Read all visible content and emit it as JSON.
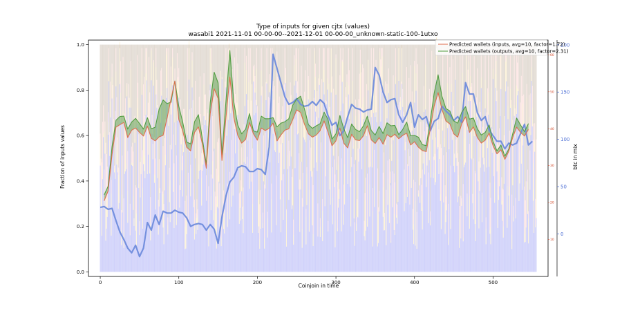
{
  "chart_data": {
    "type": "line",
    "title": "Type of inputs for given cjtx (values)",
    "subtitle": "wasabi1 2021-11-01 00-00-00--2021-12-01 00-00-00_unknown-static-100-1utxo",
    "xlabel": "Coinjoin in time",
    "ylabel": "Fraction of inputs values",
    "y2label": "btc in mix",
    "xlim": [
      -15,
      570
    ],
    "ylim": [
      -0.02,
      1.02
    ],
    "y2lim": [
      -45,
      205
    ],
    "y3lim": [
      0,
      64
    ],
    "xticks": [
      "0",
      "100",
      "200",
      "300",
      "400",
      "500"
    ],
    "yticks": [
      "0.0",
      "0.2",
      "0.4",
      "0.6",
      "0.8",
      "1.0"
    ],
    "y2ticks": [
      "0",
      "50",
      "100",
      "150",
      "200"
    ],
    "y3ticks": [
      "10",
      "20",
      "30",
      "40",
      "50",
      "60"
    ],
    "legend_position": "top-right",
    "grid": false,
    "series": [
      {
        "name": "Predicted wallets (inputs, avg=10, factor=1.72)",
        "color": "#e06a4a",
        "axis": "right-inner",
        "x": [
          5,
          10,
          15,
          20,
          25,
          30,
          35,
          40,
          45,
          50,
          55,
          60,
          65,
          70,
          75,
          80,
          85,
          90,
          95,
          100,
          105,
          110,
          115,
          120,
          125,
          130,
          135,
          140,
          145,
          150,
          155,
          160,
          165,
          170,
          175,
          180,
          185,
          190,
          195,
          200,
          205,
          210,
          215,
          220,
          225,
          230,
          235,
          240,
          245,
          250,
          255,
          260,
          265,
          270,
          275,
          280,
          285,
          290,
          295,
          300,
          305,
          310,
          315,
          320,
          325,
          330,
          335,
          340,
          345,
          350,
          355,
          360,
          365,
          370,
          375,
          380,
          385,
          390,
          395,
          400,
          405,
          410,
          415,
          420,
          425,
          430,
          435,
          440,
          445,
          450,
          455,
          460,
          465,
          470,
          475,
          480,
          485,
          490,
          495,
          500,
          505,
          510,
          515,
          520,
          525,
          530,
          535,
          540,
          545
        ],
        "values": [
          20.5,
          23.1,
          33.0,
          40.4,
          41.1,
          41.7,
          37.6,
          39.6,
          40.2,
          39.0,
          38.0,
          40.7,
          37.4,
          36.7,
          37.8,
          38.2,
          42.8,
          48.0,
          52.9,
          42.5,
          39.4,
          35.0,
          34.0,
          39.0,
          40.5,
          35.9,
          29.3,
          44.1,
          50.8,
          48.2,
          31.4,
          42.9,
          54.0,
          43.0,
          38.2,
          36.1,
          37.1,
          41.7,
          38.6,
          36.9,
          40.2,
          39.5,
          40.1,
          41.5,
          36.7,
          38.3,
          39.6,
          40.0,
          42.5,
          45.1,
          44.4,
          41.2,
          38.6,
          37.7,
          38.3,
          39.5,
          42.1,
          39.0,
          35.4,
          36.7,
          40.2,
          36.1,
          34.8,
          38.5,
          37.0,
          36.8,
          38.1,
          40.8,
          37.0,
          36.0,
          37.6,
          35.8,
          38.4,
          37.7,
          38.5,
          37.3,
          38.2,
          38.8,
          35.6,
          36.5,
          35.0,
          34.1,
          33.8,
          39.9,
          46.1,
          49.8,
          45.2,
          42.1,
          41.3,
          38.6,
          37.7,
          41.3,
          43.2,
          39.0,
          40.5,
          37.6,
          36.1,
          36.9,
          38.8,
          35.4,
          33.2,
          34.3,
          31.7,
          33.9,
          37.6,
          40.4,
          39.0,
          38.0,
          39.8
        ]
      },
      {
        "name": "Predicted wallets (outputs, avg=10, factor=2.31)",
        "color": "#4d9b3c",
        "axis": "right-inner",
        "x": [
          5,
          10,
          15,
          20,
          25,
          30,
          35,
          40,
          45,
          50,
          55,
          60,
          65,
          70,
          75,
          80,
          85,
          90,
          95,
          100,
          105,
          110,
          115,
          120,
          125,
          130,
          135,
          140,
          145,
          150,
          155,
          160,
          165,
          170,
          175,
          180,
          185,
          190,
          195,
          200,
          205,
          210,
          215,
          220,
          225,
          230,
          235,
          240,
          245,
          250,
          255,
          260,
          265,
          270,
          275,
          280,
          285,
          290,
          295,
          300,
          305,
          310,
          315,
          320,
          325,
          330,
          335,
          340,
          345,
          350,
          355,
          360,
          365,
          370,
          375,
          380,
          385,
          390,
          395,
          400,
          405,
          410,
          415,
          420,
          425,
          430,
          435,
          440,
          445,
          450,
          455,
          460,
          465,
          470,
          475,
          480,
          485,
          490,
          495,
          500,
          505,
          510,
          515,
          520,
          525,
          530,
          535,
          540,
          545
        ],
        "values": [
          22.1,
          24.4,
          35.1,
          42.3,
          43.3,
          43.4,
          39.9,
          41.8,
          42.8,
          41.4,
          39.9,
          43.0,
          40.0,
          40.4,
          45.3,
          47.8,
          46.8,
          47.2,
          52.9,
          46.1,
          41.8,
          36.4,
          35.9,
          41.9,
          43.8,
          37.4,
          30.3,
          47.1,
          55.3,
          52.4,
          33.0,
          47.5,
          61.2,
          47.3,
          41.0,
          38.6,
          39.9,
          44.1,
          39.4,
          39.1,
          43.4,
          42.7,
          42.7,
          43.0,
          40.5,
          41.5,
          41.9,
          42.7,
          46.4,
          48.0,
          48.8,
          45.3,
          41.1,
          40.1,
          40.8,
          41.4,
          44.5,
          42.5,
          37.2,
          38.6,
          43.6,
          40.0,
          37.6,
          41.3,
          39.8,
          39.2,
          40.8,
          43.4,
          39.5,
          38.3,
          40.6,
          38.7,
          41.6,
          40.8,
          40.9,
          38.4,
          39.8,
          41.8,
          38.1,
          38.2,
          37.7,
          35.7,
          35.4,
          42.1,
          49.6,
          54.6,
          48.8,
          45.5,
          44.8,
          42.1,
          41.5,
          44.4,
          46.0,
          42.6,
          42.9,
          40.0,
          38.3,
          39.0,
          41.0,
          36.6,
          34.0,
          35.6,
          32.6,
          34.5,
          38.6,
          42.9,
          41.0,
          39.2,
          41.4
        ]
      },
      {
        "name": "btc in mix",
        "color": "#6f8cdc",
        "axis": "right-outer",
        "x": [
          0,
          5,
          10,
          15,
          20,
          25,
          30,
          35,
          40,
          45,
          50,
          55,
          60,
          65,
          70,
          75,
          80,
          85,
          90,
          95,
          100,
          105,
          110,
          115,
          120,
          125,
          130,
          135,
          140,
          145,
          150,
          155,
          160,
          165,
          170,
          175,
          180,
          185,
          190,
          195,
          200,
          205,
          210,
          215,
          220,
          225,
          230,
          235,
          240,
          245,
          250,
          255,
          260,
          265,
          270,
          275,
          280,
          285,
          290,
          295,
          300,
          305,
          310,
          315,
          320,
          325,
          330,
          335,
          340,
          345,
          350,
          355,
          360,
          365,
          370,
          375,
          380,
          385,
          390,
          395,
          400,
          405,
          410,
          415,
          420,
          425,
          430,
          435,
          440,
          445,
          450,
          455,
          460,
          465,
          470,
          475,
          480,
          485,
          490,
          495,
          500,
          505,
          510,
          515,
          520,
          525,
          530,
          535,
          540,
          545,
          550
        ],
        "values": [
          28,
          29,
          26,
          27,
          14,
          2,
          -6,
          -15,
          -20,
          -12,
          -24,
          -15,
          12,
          4,
          20,
          10,
          24,
          22,
          22,
          25,
          23,
          22,
          17,
          8,
          10,
          11,
          10,
          4,
          10,
          5,
          -10,
          18,
          40,
          55,
          60,
          70,
          72,
          71,
          66,
          66,
          69,
          68,
          63,
          92,
          190,
          175,
          160,
          145,
          137,
          139,
          143,
          137,
          135,
          136,
          140,
          136,
          142,
          138,
          125,
          115,
          118,
          104,
          109,
          124,
          137,
          133,
          132,
          129,
          131,
          132,
          176,
          168,
          150,
          139,
          142,
          143,
          126,
          118,
          126,
          139,
          113,
          126,
          121,
          124,
          109,
          119,
          122,
          135,
          130,
          126,
          120,
          124,
          118,
          160,
          148,
          148,
          128,
          120,
          124,
          110,
          104,
          98,
          98,
          90,
          96,
          94,
          96,
          106,
          116,
          94,
          98
        ]
      }
    ]
  }
}
